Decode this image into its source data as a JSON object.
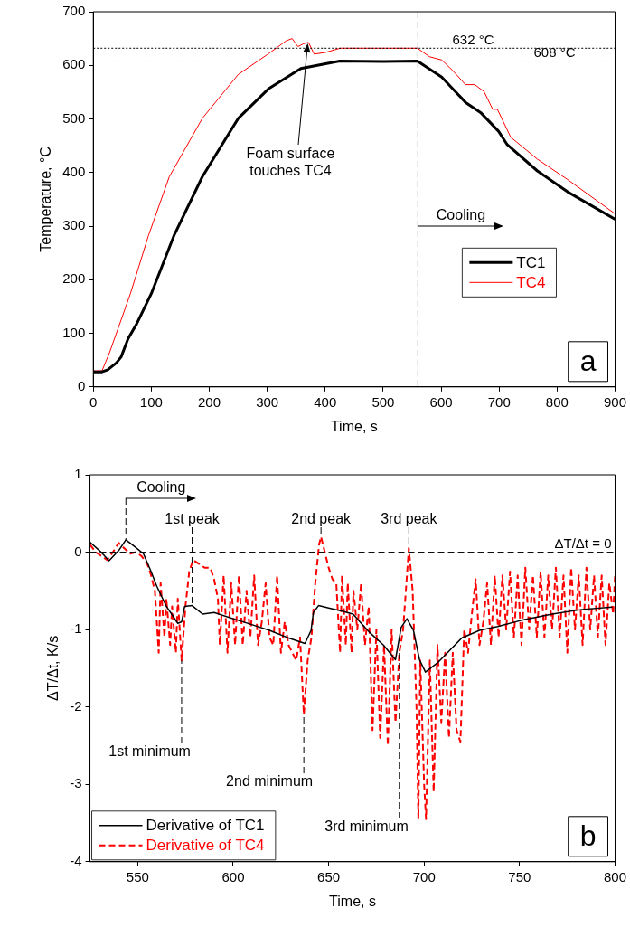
{
  "chart_data": [
    {
      "type": "line",
      "xlabel": "Time, s",
      "ylabel": "Temperature, °C",
      "xlim": [
        0,
        900
      ],
      "xticks": [
        0,
        100,
        200,
        300,
        400,
        500,
        600,
        700,
        800,
        900
      ],
      "ylim": [
        0,
        700
      ],
      "yticks": [
        0,
        100,
        200,
        300,
        400,
        500,
        600,
        700
      ],
      "legend": "right",
      "series": [
        {
          "name": "TC1",
          "color": "#000000",
          "line_style": "solid",
          "x": [
            0,
            15,
            25,
            40,
            48,
            60,
            75,
            100,
            139,
            188,
            250,
            302,
            358,
            425,
            500,
            559,
            601,
            642,
            668,
            699,
            714,
            766,
            818,
            900
          ],
          "values": [
            28,
            28,
            32,
            45,
            56,
            90,
            118,
            174,
            282,
            392,
            501,
            556,
            594,
            608,
            607,
            608,
            578,
            531,
            512,
            477,
            452,
            403,
            364,
            313
          ]
        },
        {
          "name": "TC4",
          "color": "#ff0000",
          "line_style": "solid",
          "x": [
            0,
            15,
            28,
            64,
            95,
            131,
            188,
            250,
            300,
            333,
            343,
            353,
            362,
            371,
            381,
            400,
            426,
            450,
            559,
            580,
            601,
            621,
            642,
            658,
            674,
            689,
            697,
            720,
            766,
            818,
            900
          ],
          "values": [
            30,
            30,
            64,
            174,
            282,
            392,
            501,
            583,
            620,
            646,
            650,
            635,
            640,
            643,
            621,
            624,
            632,
            632,
            632,
            616,
            610,
            589,
            564,
            564,
            551,
            518,
            518,
            466,
            425,
            387,
            323
          ]
        }
      ],
      "ref_lines": [
        {
          "axis": "x",
          "value": 560,
          "line_style": "dashed"
        },
        {
          "axis": "y",
          "value": 632,
          "label": "632 °C",
          "line_style": "dotted"
        },
        {
          "axis": "y",
          "value": 608,
          "label": "608 °C",
          "line_style": "dotted"
        }
      ],
      "annotations": [
        "Foam surface touches TC4",
        {
          "text": "Cooling",
          "x": 560,
          "y": 300
        },
        "a"
      ]
    },
    {
      "type": "line",
      "xlabel": "Time, s",
      "ylabel": "ΔT/Δt, K/s",
      "xlim": [
        525,
        800
      ],
      "xticks": [
        550,
        600,
        650,
        700,
        750,
        800
      ],
      "ylim": [
        -4,
        1
      ],
      "yticks": [
        -4,
        -3,
        -2,
        -1,
        0,
        1
      ],
      "legend": "bottom left",
      "series": [
        {
          "name": "Derivative of TC1",
          "color": "#000000",
          "line_style": "solid",
          "x": [
            525,
            530,
            535,
            540,
            543.8,
            549,
            553,
            557,
            560,
            565,
            571,
            573,
            574.6,
            578.5,
            584,
            590,
            600,
            609,
            619,
            628,
            637.6,
            640.8,
            642,
            644.7,
            650,
            656.6,
            662.8,
            667.5,
            672,
            678.7,
            685,
            688,
            691,
            694.4,
            697.6,
            700.7,
            707,
            713,
            719.7,
            729,
            738.5,
            751,
            767,
            782.8,
            798.6
          ],
          "values": [
            0.13,
            0.02,
            -0.11,
            0.02,
            0.16,
            0.06,
            -0.02,
            -0.25,
            -0.44,
            -0.7,
            -0.92,
            -0.9,
            -0.7,
            -0.69,
            -0.8,
            -0.78,
            -0.86,
            -0.93,
            -1.01,
            -1.1,
            -1.18,
            -1.01,
            -0.78,
            -0.69,
            -0.72,
            -0.76,
            -0.8,
            -0.93,
            -1.05,
            -1.2,
            -1.39,
            -0.97,
            -0.86,
            -1.01,
            -1.39,
            -1.55,
            -1.43,
            -1.28,
            -1.11,
            -1.01,
            -0.96,
            -0.88,
            -0.8,
            -0.74,
            -0.71
          ]
        },
        {
          "name": "Derivative of TC4",
          "color": "#ff0000",
          "line_style": "dashed",
          "x": [
            525,
            528,
            531,
            534,
            537,
            540,
            543,
            546,
            549,
            552,
            555,
            557,
            559,
            561,
            562,
            564,
            565,
            567,
            568,
            570,
            571,
            573,
            575,
            577,
            579,
            582,
            585,
            588,
            590,
            592,
            593,
            595,
            597,
            599,
            601,
            603,
            605,
            607,
            609,
            611,
            613,
            615,
            617,
            619,
            621,
            623,
            625,
            627,
            629,
            631,
            633,
            635,
            637,
            639,
            641,
            643,
            645,
            646,
            648,
            650,
            652,
            654,
            656,
            657,
            659,
            660,
            662,
            663,
            665,
            667,
            669,
            671,
            673,
            675,
            677,
            679,
            681,
            683,
            685,
            687,
            689,
            691,
            692,
            694,
            696,
            697,
            698,
            700,
            701,
            703,
            705,
            707,
            709,
            711,
            713,
            715,
            717,
            719,
            721,
            723,
            725,
            727,
            729,
            731,
            733,
            735,
            737,
            739,
            741,
            743,
            745,
            747,
            749,
            751,
            753,
            755,
            757,
            759,
            761,
            763,
            765,
            767,
            769,
            771,
            773,
            775,
            777,
            779,
            781,
            783,
            785,
            787,
            789,
            791,
            793,
            795,
            797,
            799,
            800
          ],
          "values": [
            0.1,
            0.0,
            -0.05,
            -0.1,
            0.0,
            0.12,
            0.05,
            -0.02,
            0.0,
            -0.05,
            -0.15,
            -0.3,
            -0.5,
            -1.3,
            -0.4,
            -1.1,
            -0.6,
            -1.2,
            -0.7,
            -1.3,
            -0.6,
            -1.4,
            -0.7,
            -0.25,
            -0.1,
            -0.15,
            -0.2,
            -0.2,
            -0.35,
            -0.6,
            -1.2,
            -0.3,
            -1.3,
            -0.4,
            -1.2,
            -0.3,
            -1.2,
            -0.5,
            -1.1,
            -0.3,
            -1.2,
            -0.9,
            -0.4,
            -1.1,
            -1.2,
            -0.3,
            -1.3,
            -0.9,
            -1.2,
            -1.3,
            -1.4,
            -1.1,
            -2.1,
            -1.4,
            -1.1,
            -0.4,
            0.1,
            0.2,
            0.0,
            -0.2,
            -0.35,
            -0.4,
            -1.3,
            -0.3,
            -1.2,
            -0.4,
            -1.3,
            -0.5,
            -1.0,
            -0.4,
            -1.2,
            -0.7,
            -2.3,
            -1.0,
            -2.4,
            -1.2,
            -2.5,
            -1.0,
            -2.2,
            -1.3,
            -1.0,
            -0.3,
            0.05,
            -0.5,
            -2.0,
            -3.45,
            -1.4,
            -3.0,
            -3.45,
            -1.4,
            -3.1,
            -1.2,
            -2.2,
            -1.3,
            -2.4,
            -1.3,
            -2.3,
            -2.45,
            -1.0,
            -1.3,
            -0.8,
            -0.35,
            -1.2,
            -0.9,
            -0.4,
            -1.2,
            -0.3,
            -1.1,
            -0.3,
            -1.0,
            -0.25,
            -1.1,
            -0.3,
            -1.2,
            -0.2,
            -1.0,
            -0.3,
            -1.1,
            -0.25,
            -1.1,
            -0.3,
            -1.0,
            -0.2,
            -1.1,
            -0.3,
            -1.3,
            -0.2,
            -1.0,
            -0.3,
            -1.2,
            -0.2,
            -1.0,
            -0.3,
            -1.1,
            -0.3,
            -1.2,
            -0.4,
            -0.8,
            -0.3
          ]
        }
      ],
      "ref_lines": [
        {
          "axis": "y",
          "value": 0,
          "label": "ΔT/Δt = 0",
          "line_style": "dashed"
        }
      ],
      "annotations": [
        {
          "text": "Cooling",
          "x": 543.8,
          "y": 0.16
        },
        {
          "text": "1st peak",
          "x": 578.5,
          "y": -0.69
        },
        {
          "text": "2nd peak",
          "x": 646,
          "y": 0.2
        },
        {
          "text": "3rd peak",
          "x": 692,
          "y": 0.05
        },
        {
          "text": "1st minimum",
          "x": 573,
          "y": -1.4
        },
        {
          "text": "2nd minimum",
          "x": 637,
          "y": -2.1
        },
        {
          "text": "3rd minimum",
          "x": 687,
          "y": -1.3
        },
        "b"
      ]
    }
  ]
}
